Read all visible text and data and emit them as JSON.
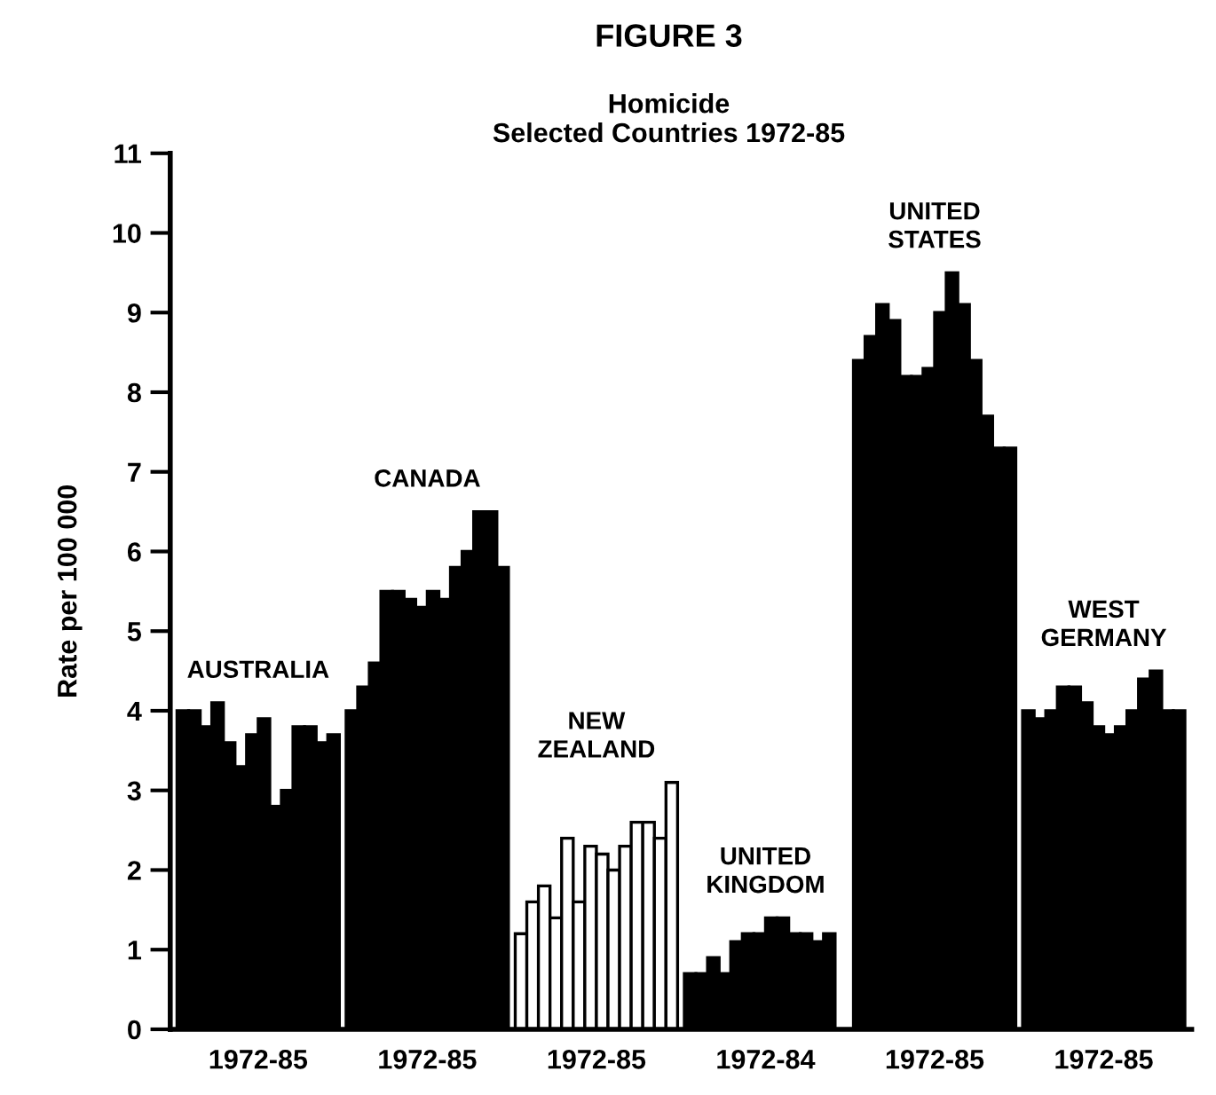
{
  "chart_data": {
    "type": "bar",
    "title": "FIGURE 3",
    "subtitle": "Homicide\nSelected Countries 1972-85",
    "ylabel": "Rate per 100 000",
    "categories": [
      "1972-85",
      "1972-85",
      "1972-85",
      "1972-84",
      "1972-85",
      "1972-85"
    ],
    "series": [
      {
        "colors": [
          "#000000",
          "#000000",
          "#ffffff",
          "#000000",
          "#000000",
          "#000000"
        ],
        "values": [
          4.0,
          4.0,
          1.2,
          0.7,
          8.4,
          4.0
        ]
      },
      {
        "colors": [
          "#000000",
          "#000000",
          "#ffffff",
          "#000000",
          "#000000",
          "#000000"
        ],
        "values": [
          4.0,
          4.3,
          1.6,
          0.7,
          8.7,
          3.9
        ]
      },
      {
        "colors": [
          "#000000",
          "#000000",
          "#ffffff",
          "#000000",
          "#000000",
          "#000000"
        ],
        "values": [
          3.8,
          4.6,
          1.8,
          0.9,
          9.1,
          4.0
        ]
      },
      {
        "colors": [
          "#000000",
          "#000000",
          "#ffffff",
          "#000000",
          "#000000",
          "#000000"
        ],
        "values": [
          4.1,
          5.5,
          1.4,
          0.7,
          8.9,
          4.3
        ]
      },
      {
        "colors": [
          "#000000",
          "#000000",
          "#ffffff",
          "#000000",
          "#000000",
          "#000000"
        ],
        "values": [
          3.6,
          5.5,
          2.4,
          1.1,
          8.2,
          4.3
        ]
      },
      {
        "colors": [
          "#000000",
          "#000000",
          "#ffffff",
          "#000000",
          "#000000",
          "#000000"
        ],
        "values": [
          3.3,
          5.4,
          1.6,
          1.2,
          8.2,
          4.1
        ]
      },
      {
        "colors": [
          "#000000",
          "#000000",
          "#ffffff",
          "#000000",
          "#000000",
          "#000000"
        ],
        "values": [
          3.7,
          5.3,
          2.3,
          1.2,
          8.3,
          3.8
        ]
      },
      {
        "colors": [
          "#000000",
          "#000000",
          "#ffffff",
          "#000000",
          "#000000",
          "#000000"
        ],
        "values": [
          3.9,
          5.5,
          2.2,
          1.4,
          9.0,
          3.7
        ]
      },
      {
        "colors": [
          "#000000",
          "#000000",
          "#ffffff",
          "#000000",
          "#000000",
          "#000000"
        ],
        "values": [
          2.8,
          5.4,
          2.0,
          1.4,
          9.5,
          3.8
        ]
      },
      {
        "colors": [
          "#000000",
          "#000000",
          "#ffffff",
          "#000000",
          "#000000",
          "#000000"
        ],
        "values": [
          3.0,
          5.8,
          2.3,
          1.2,
          9.1,
          4.0
        ]
      },
      {
        "colors": [
          "#000000",
          "#000000",
          "#ffffff",
          "#000000",
          "#000000",
          "#000000"
        ],
        "values": [
          3.8,
          6.0,
          2.6,
          1.2,
          8.4,
          4.4
        ]
      },
      {
        "colors": [
          "#000000",
          "#000000",
          "#ffffff",
          "#000000",
          "#000000",
          "#000000"
        ],
        "values": [
          3.8,
          6.5,
          2.6,
          1.1,
          7.7,
          4.5
        ]
      },
      {
        "colors": [
          "#000000",
          "#000000",
          "#ffffff",
          "#000000",
          "#000000",
          "#000000"
        ],
        "values": [
          3.6,
          6.5,
          2.4,
          1.2,
          7.3,
          4.0
        ]
      },
      {
        "colors": [
          "#000000",
          "#000000",
          "#ffffff",
          "#000000",
          "#000000",
          "#000000"
        ],
        "values": [
          3.7,
          5.8,
          3.1,
          null,
          7.3,
          4.0
        ]
      }
    ],
    "ylim": [
      0,
      11
    ],
    "yticks": [
      0,
      1,
      2,
      3,
      4,
      5,
      6,
      7,
      8,
      9,
      10,
      11
    ],
    "grid": false,
    "legend": false,
    "annotations": [
      "AUSTRALIA",
      "CANADA",
      "NEW\nZEALAND",
      "UNITED\nKINGDOM",
      "UNITED\nSTATES",
      "WEST\nGERMANY"
    ]
  }
}
